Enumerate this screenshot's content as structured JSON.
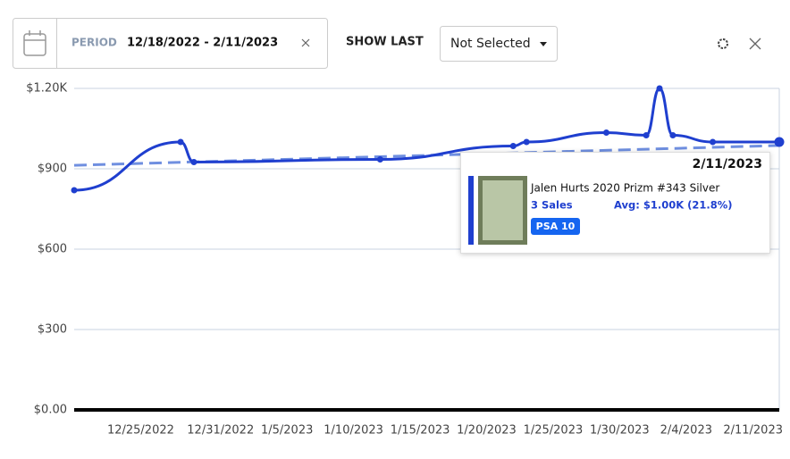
{
  "toolbar": {
    "period_label": "PERIOD",
    "period_range": "12/18/2022 - 2/11/2023",
    "show_last_label": "SHOW LAST",
    "show_last_value": "Not Selected"
  },
  "chart_data": {
    "type": "line",
    "x": [
      "12/20/2022",
      "12/28/2022",
      "12/29/2022",
      "1/12/2023",
      "1/22/2023",
      "1/23/2023",
      "1/29/2023",
      "2/1/2023",
      "2/2/2023",
      "2/3/2023",
      "2/6/2023",
      "2/11/2023"
    ],
    "series": [
      {
        "color": "#1f3fcf",
        "values": [
          820,
          1000,
          925,
          935,
          985,
          1000,
          1035,
          1025,
          1200,
          1025,
          1000,
          1000
        ]
      }
    ],
    "trend": {
      "color": "#6f8fe0",
      "x": [
        "12/20/2022",
        "2/11/2023"
      ],
      "values": [
        913,
        987
      ]
    },
    "xlim": [
      "12/20/2022",
      "2/11/2023"
    ],
    "xticks": [
      "12/25/2022",
      "12/31/2022",
      "1/5/2023",
      "1/10/2023",
      "1/15/2023",
      "1/20/2023",
      "1/25/2023",
      "1/30/2023",
      "2/4/2023",
      "2/11/2023"
    ],
    "ylim": [
      0,
      1200
    ],
    "yticks": [
      {
        "value": 0,
        "label": "$0.00"
      },
      {
        "value": 300,
        "label": "$300"
      },
      {
        "value": 600,
        "label": "$600"
      },
      {
        "value": 900,
        "label": "$900"
      },
      {
        "value": 1200,
        "label": "$1.20K"
      }
    ],
    "grid": true
  },
  "tooltip": {
    "date": "2/11/2023",
    "title": "Jalen Hurts 2020 Prizm #343 Silver",
    "sales": "3 Sales",
    "avg": "Avg: $1.00K (21.8%)",
    "grade": "PSA 10"
  }
}
